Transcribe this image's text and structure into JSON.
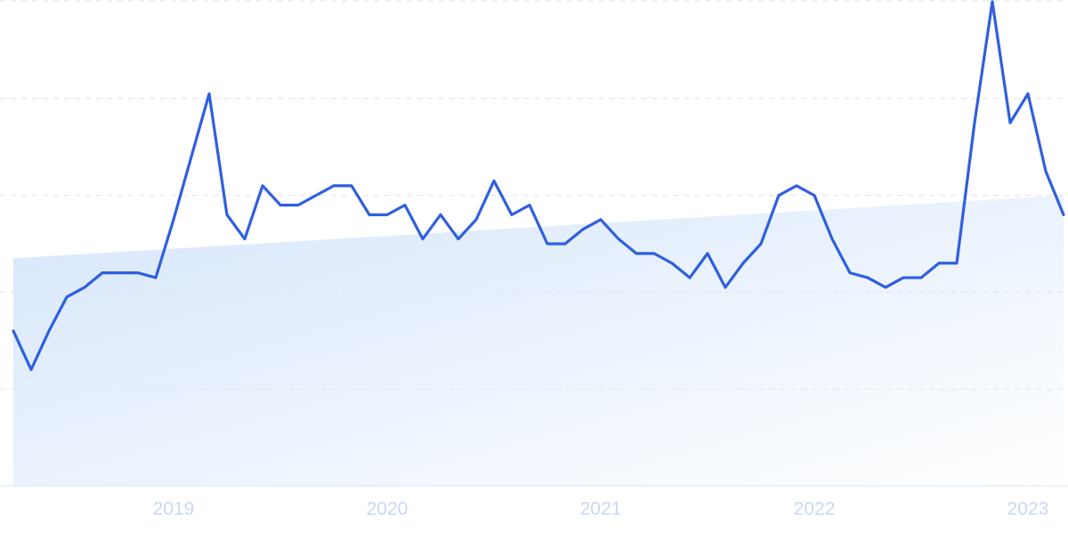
{
  "chart_data": {
    "type": "line",
    "x": [
      2018.25,
      2018.3333,
      2018.4167,
      2018.5,
      2018.5833,
      2018.6667,
      2018.75,
      2018.8333,
      2018.9167,
      2019,
      2019.0833,
      2019.1667,
      2019.25,
      2019.3333,
      2019.4167,
      2019.5,
      2019.5833,
      2019.6667,
      2019.75,
      2019.8333,
      2019.9167,
      2020,
      2020.0833,
      2020.1667,
      2020.25,
      2020.3333,
      2020.4167,
      2020.5,
      2020.5833,
      2020.6667,
      2020.75,
      2020.8333,
      2020.9167,
      2021,
      2021.0833,
      2021.1667,
      2021.25,
      2021.3333,
      2021.4167,
      2021.5,
      2021.5833,
      2021.6667,
      2021.75,
      2021.8333,
      2021.9167,
      2022,
      2022.0833,
      2022.1667,
      2022.25,
      2022.3333,
      2022.4167,
      2022.5,
      2022.5833,
      2022.6667,
      2022.75,
      2022.8333,
      2022.9167,
      2023,
      2023.0833,
      2023.1667
    ],
    "series": [
      {
        "color": "#2f5fe0",
        "values": [
          32,
          24,
          32,
          39,
          41,
          44,
          44,
          44,
          43,
          55,
          68,
          81,
          56,
          51,
          62,
          58,
          58,
          60,
          62,
          62,
          56,
          56,
          58,
          51,
          56,
          51,
          55,
          63,
          56,
          58,
          50,
          50,
          53,
          55,
          51,
          48,
          48,
          46,
          43,
          48,
          41,
          46,
          50,
          60,
          62,
          60,
          51,
          44,
          43,
          41,
          43,
          43,
          46,
          46,
          75,
          100,
          75,
          81,
          65,
          56
        ]
      }
    ],
    "trend": [
      47,
      60
    ],
    "xlim": [
      2018.25,
      2023.1667
    ],
    "xticks": [
      2019,
      2020,
      2021,
      2022,
      2023
    ],
    "ylim": [
      0,
      100
    ],
    "yticks": [
      0,
      20,
      40,
      60,
      80,
      100
    ],
    "grid": true
  }
}
